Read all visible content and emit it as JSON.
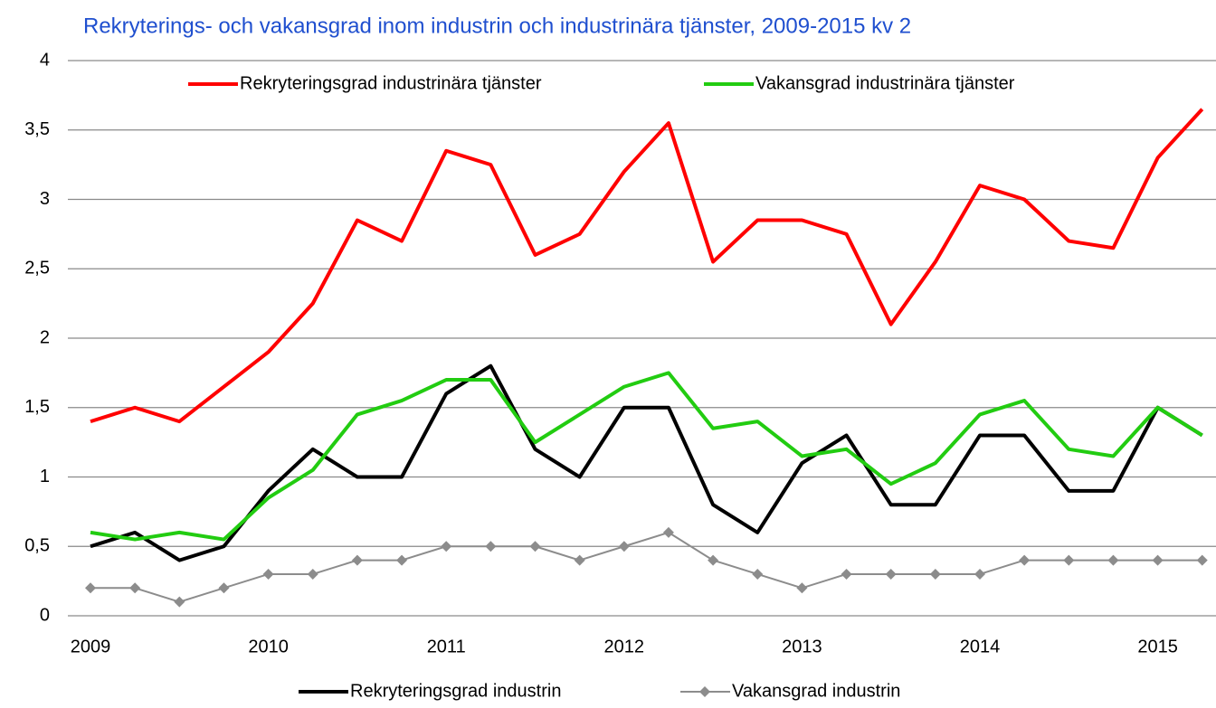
{
  "chart_data": {
    "type": "line",
    "title": "Rekryterings- och vakansgrad inom industrin och industrinära tjänster, 2009-2015 kv 2",
    "categories": [
      "2009",
      null,
      null,
      null,
      "2010",
      null,
      null,
      null,
      "2011",
      null,
      null,
      null,
      "2012",
      null,
      null,
      null,
      "2013",
      null,
      null,
      null,
      "2014",
      null,
      null,
      null,
      "2015",
      null
    ],
    "series": [
      {
        "name": "Rekryteringsgrad industrinära tjänster",
        "color": "#ff0000",
        "values": [
          1.4,
          1.5,
          1.4,
          1.65,
          1.9,
          2.25,
          2.85,
          2.7,
          3.35,
          3.25,
          2.6,
          2.75,
          3.2,
          3.55,
          2.55,
          2.85,
          2.85,
          2.75,
          2.1,
          2.55,
          3.1,
          3.0,
          2.7,
          2.65,
          3.3,
          3.65
        ]
      },
      {
        "name": "Vakansgrad industrinära tjänster",
        "color": "#22cc11",
        "values": [
          0.6,
          0.55,
          0.6,
          0.55,
          0.85,
          1.05,
          1.45,
          1.55,
          1.7,
          1.7,
          1.25,
          1.45,
          1.65,
          1.75,
          1.35,
          1.4,
          1.15,
          1.2,
          0.95,
          1.1,
          1.45,
          1.55,
          1.2,
          1.15,
          1.5,
          1.3
        ]
      },
      {
        "name": "Rekryteringsgrad industrin",
        "color": "#000000",
        "values": [
          0.5,
          0.6,
          0.4,
          0.5,
          0.9,
          1.2,
          1.0,
          1.0,
          1.6,
          1.8,
          1.2,
          1.0,
          1.5,
          1.5,
          0.8,
          0.6,
          1.1,
          1.3,
          0.8,
          0.8,
          1.3,
          1.3,
          0.9,
          0.9,
          1.5,
          1.3
        ]
      },
      {
        "name": "Vakansgrad industrin",
        "color": "#8c8c8c",
        "marker": "diamond",
        "values": [
          0.2,
          0.2,
          0.1,
          0.2,
          0.3,
          0.3,
          0.4,
          0.4,
          0.5,
          0.5,
          0.5,
          0.4,
          0.5,
          0.6,
          0.4,
          0.3,
          0.2,
          0.3,
          0.3,
          0.3,
          0.3,
          0.4,
          0.4,
          0.4,
          0.4,
          0.4
        ]
      }
    ],
    "ylim": [
      0,
      4
    ],
    "yticks": [
      0,
      {
        "value": 0.5,
        "label": "0,5"
      },
      1,
      {
        "value": 1.5,
        "label": "1,5"
      },
      2,
      {
        "value": 2.5,
        "label": "2,5"
      },
      3,
      {
        "value": 3.5,
        "label": "3,5"
      },
      4
    ],
    "grid": true
  }
}
